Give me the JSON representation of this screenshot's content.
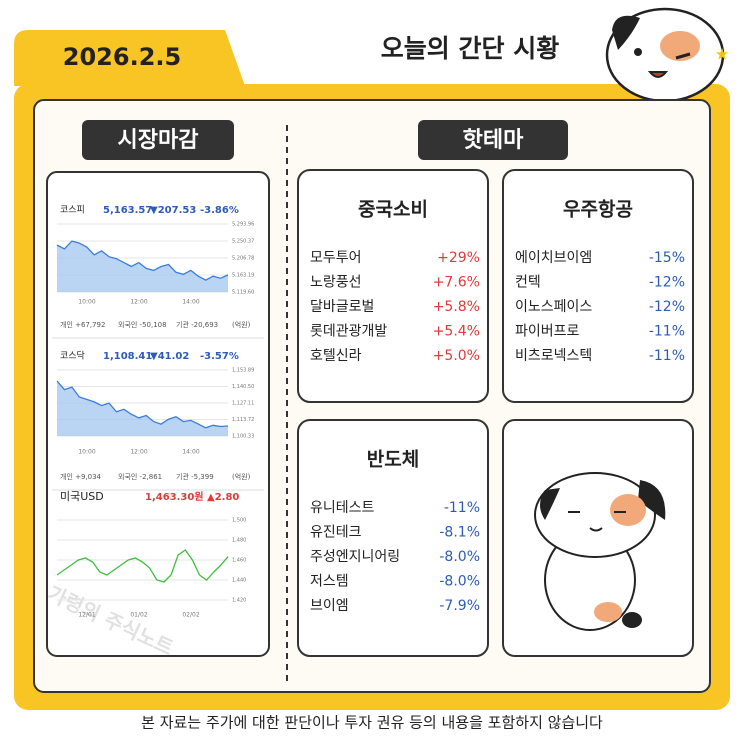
{
  "header": {
    "date": "2026.2.5",
    "title": "오늘의 간단 시황"
  },
  "market": {
    "label": "시장마감",
    "panels": [
      {
        "name": "코스피",
        "value": "5,163.57",
        "change": "▼207.53",
        "pct": "-3.86%",
        "ylim": [
          5119.6,
          5293.96
        ],
        "yticks": [
          {
            "value": 5293.96,
            "label": "5,293.96"
          },
          {
            "value": 5250.37,
            "label": "5,250.37"
          },
          {
            "value": 5206.78,
            "label": "5,206.78"
          },
          {
            "value": 5163.19,
            "label": "5,163.19"
          },
          {
            "value": 5119.6,
            "label": "5,119.60"
          }
        ],
        "xlabels": [
          "10:00",
          "12:00",
          "14:00"
        ],
        "values": [
          5240,
          5230,
          5250,
          5245,
          5235,
          5215,
          5225,
          5210,
          5205,
          5195,
          5185,
          5195,
          5180,
          5175,
          5185,
          5190,
          5170,
          5165,
          5175,
          5160,
          5150,
          5160,
          5155,
          5163.57
        ],
        "flows": [
          "개인 +67,792",
          "외국인 -50,108",
          "기관 -20,693",
          "(억원)"
        ]
      },
      {
        "name": "코스닥",
        "value": "1,108.41",
        "change": "▼41.02",
        "pct": "-3.57%",
        "ylim": [
          1100.33,
          1153.89
        ],
        "yticks": [
          {
            "value": 1153.89,
            "label": "1,153.89"
          },
          {
            "value": 1140.5,
            "label": "1,140.50"
          },
          {
            "value": 1127.11,
            "label": "1,127.11"
          },
          {
            "value": 1113.72,
            "label": "1,113.72"
          },
          {
            "value": 1100.33,
            "label": "1,100.33"
          }
        ],
        "xlabels": [
          "10:00",
          "12:00",
          "14:00"
        ],
        "values": [
          1145,
          1138,
          1140,
          1132,
          1130,
          1128,
          1125,
          1127,
          1120,
          1122,
          1118,
          1115,
          1117,
          1112,
          1110,
          1114,
          1116,
          1112,
          1113,
          1110,
          1107,
          1109,
          1108,
          1108.41
        ],
        "flows": [
          "개인 +9,034",
          "외국인 -2,861",
          "기관 -5,399",
          "(억원)"
        ]
      },
      {
        "name": "미국USD",
        "value": "1,463.30원",
        "change": "▲2.80",
        "ylim": [
          1420,
          1500
        ],
        "yticks": [
          {
            "value": 1500,
            "label": "1,500"
          },
          {
            "value": 1480,
            "label": "1,480"
          },
          {
            "value": 1460,
            "label": "1,460"
          },
          {
            "value": 1440,
            "label": "1,440"
          },
          {
            "value": 1420,
            "label": "1,420"
          }
        ],
        "xlabels": [
          "12/01",
          "01/02",
          "02/02"
        ],
        "values": [
          1445,
          1450,
          1455,
          1460,
          1462,
          1458,
          1448,
          1445,
          1450,
          1455,
          1460,
          1462,
          1458,
          1452,
          1440,
          1438,
          1445,
          1465,
          1470,
          1460,
          1445,
          1440,
          1448,
          1455,
          1463.3
        ]
      }
    ]
  },
  "themes": {
    "label": "핫테마",
    "cards": [
      {
        "title": "중국소비",
        "items": [
          [
            "모두투어",
            "+29%"
          ],
          [
            "노랑풍선",
            "+7.6%"
          ],
          [
            "달바글로벌",
            "+5.8%"
          ],
          [
            "롯데관광개발",
            "+5.4%"
          ],
          [
            "호텔신라",
            "+5.0%"
          ]
        ]
      },
      {
        "title": "우주항공",
        "items": [
          [
            "에이치브이엠",
            "-15%"
          ],
          [
            "컨텍",
            "-12%"
          ],
          [
            "이노스페이스",
            "-12%"
          ],
          [
            "파이버프로",
            "-11%"
          ],
          [
            "비츠로넥스텍",
            "-11%"
          ]
        ]
      },
      {
        "title": "반도체",
        "items": [
          [
            "유니테스트",
            "-11%"
          ],
          [
            "유진테크",
            "-8.1%"
          ],
          [
            "주성엔지니어링",
            "-8.0%"
          ],
          [
            "저스템",
            "-8.0%"
          ],
          [
            "브이엠",
            "-7.9%"
          ]
        ]
      }
    ]
  },
  "watermark": "가령의 주식노트",
  "footer": "본 자료는 주가에 대한 판단이나 투자 권유 등의 내용을 포함하지 않습니다"
}
